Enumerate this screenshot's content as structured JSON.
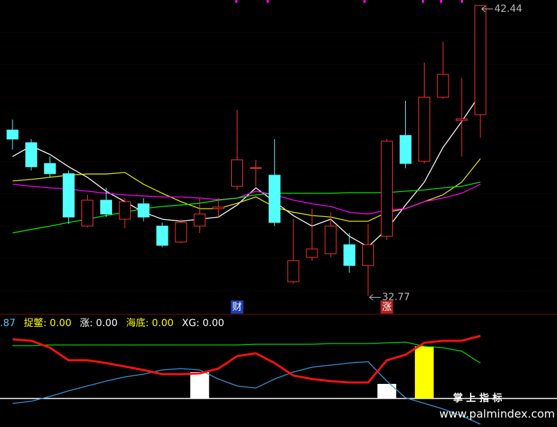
{
  "chart_data": [
    {
      "type": "candlestick",
      "ylim": [
        32.25,
        42.6
      ],
      "up_color": "#ff3232",
      "down_color": "#54ffff",
      "candles": [
        {
          "open": 38.28,
          "high": 38.63,
          "low": 37.63,
          "close": 37.98
        },
        {
          "open": 37.86,
          "high": 37.98,
          "low": 36.94,
          "close": 37.06
        },
        {
          "open": 37.17,
          "high": 37.4,
          "low": 36.71,
          "close": 36.83
        },
        {
          "open": 36.83,
          "high": 36.94,
          "low": 35.16,
          "close": 35.39
        },
        {
          "open": 35.09,
          "high": 36.13,
          "low": 35.05,
          "close": 35.95
        },
        {
          "open": 35.95,
          "high": 36.36,
          "low": 35.39,
          "close": 35.49
        },
        {
          "open": 35.32,
          "high": 36.02,
          "low": 35.02,
          "close": 35.9
        },
        {
          "open": 35.83,
          "high": 36.02,
          "low": 35.25,
          "close": 35.39
        },
        {
          "open": 35.09,
          "high": 35.21,
          "low": 34.38,
          "close": 34.45
        },
        {
          "open": 34.56,
          "high": 35.32,
          "low": 34.52,
          "close": 35.21
        },
        {
          "open": 35.09,
          "high": 36.02,
          "low": 34.86,
          "close": 35.49
        },
        {
          "open": 35.67,
          "high": 36.02,
          "low": 35.39,
          "close": 35.72
        },
        {
          "open": 36.41,
          "high": 38.95,
          "low": 36.29,
          "close": 37.29
        },
        {
          "open": 37.01,
          "high": 37.29,
          "low": 36.41,
          "close": 37.03
        },
        {
          "open": 36.78,
          "high": 37.98,
          "low": 35.09,
          "close": 35.21
        },
        {
          "open": 33.24,
          "high": 35.32,
          "low": 33.18,
          "close": 33.94
        },
        {
          "open": 34.05,
          "high": 35.67,
          "low": 33.94,
          "close": 34.33
        },
        {
          "open": 34.17,
          "high": 35.55,
          "low": 34.05,
          "close": 35.09
        },
        {
          "open": 34.47,
          "high": 34.86,
          "low": 33.54,
          "close": 33.78
        },
        {
          "open": 33.78,
          "high": 35.16,
          "low": 32.77,
          "close": 34.47
        },
        {
          "open": 34.75,
          "high": 37.98,
          "low": 34.63,
          "close": 37.91
        },
        {
          "open": 38.1,
          "high": 39.25,
          "low": 37.01,
          "close": 37.17
        },
        {
          "open": 37.24,
          "high": 40.52,
          "low": 37.17,
          "close": 39.37
        },
        {
          "open": 39.37,
          "high": 41.21,
          "low": 39.32,
          "close": 40.13
        },
        {
          "open": 38.6,
          "high": 40.01,
          "low": 37.4,
          "close": 38.65
        },
        {
          "open": 38.79,
          "high": 42.44,
          "low": 38.03,
          "close": 42.42
        }
      ],
      "series": [
        {
          "color": "#ffffff",
          "values": [
            37.4,
            37.75,
            37.47,
            37.06,
            36.71,
            36.25,
            35.9,
            35.55,
            35.32,
            35.25,
            35.32,
            35.39,
            35.79,
            36.36,
            35.9,
            35.44,
            35.09,
            35.32,
            34.75,
            34.4,
            34.98,
            35.79,
            36.55,
            37.7,
            38.56,
            39.48
          ]
        },
        {
          "color": "#e8e800",
          "values": [
            36.59,
            36.64,
            36.71,
            36.78,
            36.82,
            36.82,
            36.87,
            36.48,
            36.18,
            35.9,
            35.67,
            35.67,
            35.85,
            36.06,
            35.72,
            35.55,
            35.44,
            35.39,
            35.25,
            35.25,
            35.55,
            35.67,
            35.9,
            36.13,
            36.55,
            37.33
          ]
        },
        {
          "color": "#ff00ff",
          "values": [
            36.48,
            36.41,
            36.36,
            36.32,
            36.25,
            36.18,
            36.13,
            36.09,
            36.06,
            36.06,
            36.02,
            35.97,
            36.02,
            36.25,
            36.13,
            35.95,
            35.83,
            35.74,
            35.55,
            35.49,
            35.62,
            35.67,
            35.9,
            36.02,
            36.18,
            36.48
          ]
        },
        {
          "color": "#00ee00",
          "values": [
            34.86,
            34.98,
            35.09,
            35.21,
            35.32,
            35.44,
            35.55,
            35.67,
            35.74,
            35.79,
            35.85,
            35.95,
            36.02,
            36.13,
            36.18,
            36.18,
            36.18,
            36.18,
            36.2,
            36.2,
            36.2,
            36.25,
            36.29,
            36.36,
            36.41,
            36.55
          ]
        }
      ],
      "annotations": [
        {
          "text": "财",
          "index": 12,
          "color": "#1f3fb0"
        },
        {
          "text": "涨",
          "index": 20,
          "color": "#b02020"
        }
      ]
    },
    {
      "type": "indicator",
      "ylim": [
        -41,
        110
      ],
      "legend": [
        {
          "text": ".87",
          "color": "#55ccff"
        },
        {
          "text": "捉鳖: 0.00",
          "color": "#ffff00"
        },
        {
          "text": "涨: 0.00",
          "color": "#ffffff"
        },
        {
          "text": "海底: 0.00",
          "color": "#ffff00"
        },
        {
          "text": "XG: 0.00",
          "color": "#ffffff"
        }
      ],
      "series": [
        {
          "type": "bar",
          "color": "#ffffff",
          "values": [
            null,
            null,
            null,
            null,
            null,
            null,
            null,
            null,
            null,
            null,
            38,
            null,
            null,
            null,
            null,
            null,
            null,
            null,
            null,
            null,
            21,
            null,
            null,
            null,
            null,
            null
          ]
        },
        {
          "type": "bar",
          "color": "#ffff00",
          "values": [
            null,
            null,
            null,
            null,
            null,
            null,
            null,
            null,
            null,
            null,
            null,
            null,
            null,
            null,
            null,
            null,
            null,
            null,
            null,
            null,
            null,
            null,
            75,
            null,
            null,
            null
          ]
        },
        {
          "type": "line",
          "color": "#00dd00",
          "values": [
            76,
            76,
            77,
            77,
            77,
            77,
            77,
            77,
            77,
            77,
            77,
            77,
            77,
            78,
            78,
            78,
            78,
            79,
            79,
            79,
            80,
            81,
            75,
            73,
            68,
            51
          ]
        },
        {
          "type": "line",
          "color": "#3399dd",
          "values": [
            -7,
            -4,
            3,
            11,
            18,
            25,
            31,
            35,
            41,
            43,
            41,
            28,
            18,
            15,
            28,
            38,
            45,
            48,
            51,
            53,
            25,
            1,
            -7,
            -15,
            -25,
            -37
          ]
        },
        {
          "type": "line",
          "color": "#ff1010",
          "width": 3,
          "values": [
            85,
            83,
            73,
            55,
            55,
            51,
            46,
            41,
            35,
            35,
            36,
            43,
            61,
            65,
            51,
            33,
            28,
            25,
            23,
            23,
            55,
            63,
            80,
            83,
            83,
            90
          ]
        }
      ]
    }
  ],
  "watermark": {
    "title": "掌 上 指 标",
    "url": "www.palmindex.com"
  }
}
